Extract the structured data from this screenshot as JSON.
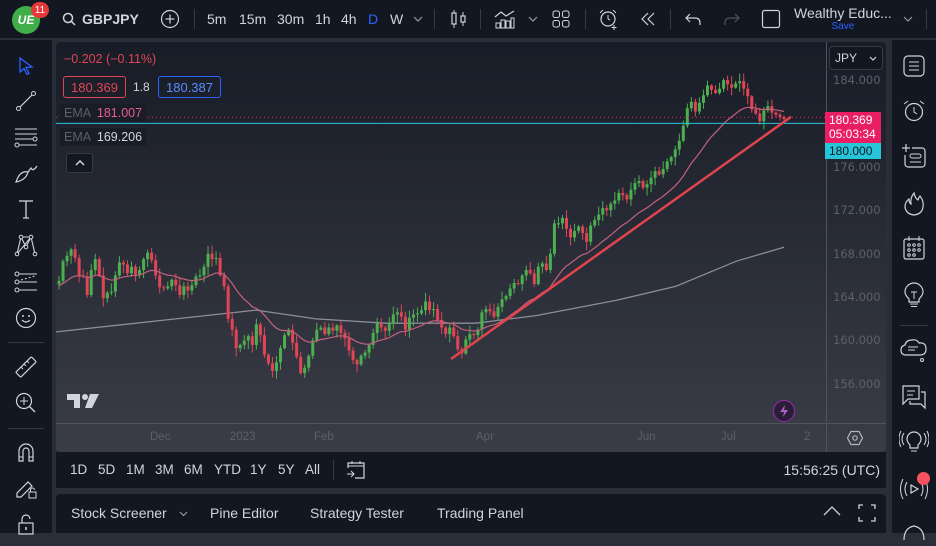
{
  "topbar": {
    "logo_text": "UE",
    "notification_count": "11",
    "symbol": "GBPJPY",
    "intervals": [
      "5m",
      "15m",
      "30m",
      "1h",
      "4h",
      "D",
      "W"
    ],
    "active_interval": "D",
    "layout_name": "Wealthy Educ...",
    "save_label": "Save",
    "icons": [
      "search-icon",
      "add-symbol-icon",
      "interval-dropdown-icon",
      "candles-icon",
      "indicators-icon",
      "layout-grid-icon",
      "alert-add-icon",
      "replay-icon",
      "undo-icon",
      "redo-icon",
      "fullscreen-icon",
      "layout-dropdown-icon"
    ]
  },
  "legend": {
    "change": "−0.202 (−0.11%)",
    "bid": "180.369",
    "spread": "1.8",
    "ask": "180.387",
    "ema1_label": "EMA",
    "ema1_value": "181.007",
    "ema2_label": "EMA",
    "ema2_value": "169.206"
  },
  "price_axis": {
    "currency": "JPY",
    "ticks": [
      "184.000",
      "176.000",
      "172.000",
      "168.000",
      "164.000",
      "160.000",
      "156.000"
    ],
    "last_price": "180.369",
    "countdown": "05:03:34",
    "line_label": "180.000"
  },
  "time_axis": {
    "ticks": [
      {
        "label": "Dec",
        "x": 106
      },
      {
        "label": "2023",
        "x": 186
      },
      {
        "label": "Feb",
        "x": 270
      },
      {
        "label": "Apr",
        "x": 432
      },
      {
        "label": "Jun",
        "x": 593
      },
      {
        "label": "Jul",
        "x": 677
      },
      {
        "label": "2",
        "x": 760
      }
    ]
  },
  "range_bar": {
    "ranges": [
      "1D",
      "5D",
      "1M",
      "3M",
      "6M",
      "YTD",
      "1Y",
      "5Y",
      "All"
    ],
    "clock": "15:56:25 (UTC)"
  },
  "bottom_panel": {
    "tabs": [
      "Stock Screener",
      "Pine Editor",
      "Strategy Tester",
      "Trading Panel"
    ]
  },
  "colors": {
    "up": "#4caf50",
    "down": "#e04556",
    "ema_fast": "#c2607e",
    "ema_slow": "#9598a1",
    "trendline": "#e2444d",
    "last_price_bg": "#e91e63",
    "hline_bg": "#26c6da",
    "accent_blue": "#2962ff"
  },
  "chart_data": {
    "type": "candlestick",
    "title": "GBPJPY · D",
    "ylabel": "JPY",
    "ylim": [
      154.5,
      186.5
    ],
    "x_ticks": [
      "Dec",
      "2023",
      "Feb",
      "Apr",
      "Jun",
      "Jul",
      "2"
    ],
    "y_ticks": [
      156,
      160,
      164,
      168,
      172,
      176,
      180,
      184
    ],
    "horizontal_line": 180.0,
    "last_price": 180.369,
    "trendline": {
      "from": [
        395,
        158.3
      ],
      "to": [
        735,
        180.6
      ]
    },
    "ema_fast_last": 181.007,
    "ema_slow_last": 169.206,
    "closes_approx": [
      165.5,
      167.3,
      167.8,
      168.4,
      167.6,
      166.0,
      165.9,
      164.2,
      166.5,
      167.5,
      166.0,
      163.9,
      164.4,
      164.5,
      166.0,
      167.2,
      167.0,
      166.2,
      166.8,
      166.1,
      166.5,
      167.5,
      168.1,
      167.4,
      166.0,
      164.9,
      164.8,
      165.0,
      165.6,
      165.1,
      164.2,
      165.0,
      164.6,
      165.1,
      165.9,
      166.0,
      166.8,
      168.0,
      167.5,
      167.6,
      166.0,
      165.0,
      162.0,
      161.0,
      159.3,
      159.6,
      160.0,
      160.4,
      159.6,
      161.5,
      160.5,
      158.7,
      157.9,
      157.2,
      158.0,
      159.3,
      160.5,
      161.0,
      159.8,
      158.5,
      157.0,
      157.5,
      158.6,
      160.0,
      161.0,
      161.2,
      160.6,
      161.2,
      160.9,
      161.4,
      160.7,
      160.2,
      159.1,
      158.2,
      157.8,
      158.6,
      158.9,
      159.6,
      160.7,
      161.6,
      161.2,
      160.9,
      161.6,
      162.4,
      162.6,
      162.2,
      161.0,
      162.1,
      162.4,
      162.5,
      162.8,
      163.6,
      162.8,
      162.9,
      161.9,
      161.2,
      160.6,
      161.2,
      160.4,
      159.2,
      158.8,
      160.1,
      160.6,
      160.5,
      161.0,
      162.6,
      162.9,
      162.7,
      162.2,
      163.1,
      163.8,
      164.1,
      164.8,
      165.3,
      165.2,
      166.0,
      166.5,
      166.2,
      165.2,
      166.8,
      167.1,
      166.5,
      168.0,
      170.8,
      170.8,
      171.3,
      170.3,
      169.5,
      170.1,
      170.5,
      169.9,
      169.1,
      170.6,
      171.1,
      171.6,
      172.2,
      172.0,
      172.6,
      172.9,
      173.6,
      173.4,
      173.0,
      173.9,
      174.5,
      174.7,
      174.1,
      174.4,
      175.0,
      175.6,
      175.3,
      175.8,
      176.5,
      176.9,
      177.6,
      178.4,
      179.8,
      181.4,
      182.0,
      181.1,
      181.9,
      182.6,
      183.5,
      183.1,
      182.8,
      183.2,
      184.0,
      183.6,
      183.3,
      183.7,
      183.9,
      183.2,
      182.5,
      181.3,
      180.9,
      180.2,
      181.2,
      181.6,
      181.0,
      180.8,
      180.6,
      180.4
    ]
  }
}
